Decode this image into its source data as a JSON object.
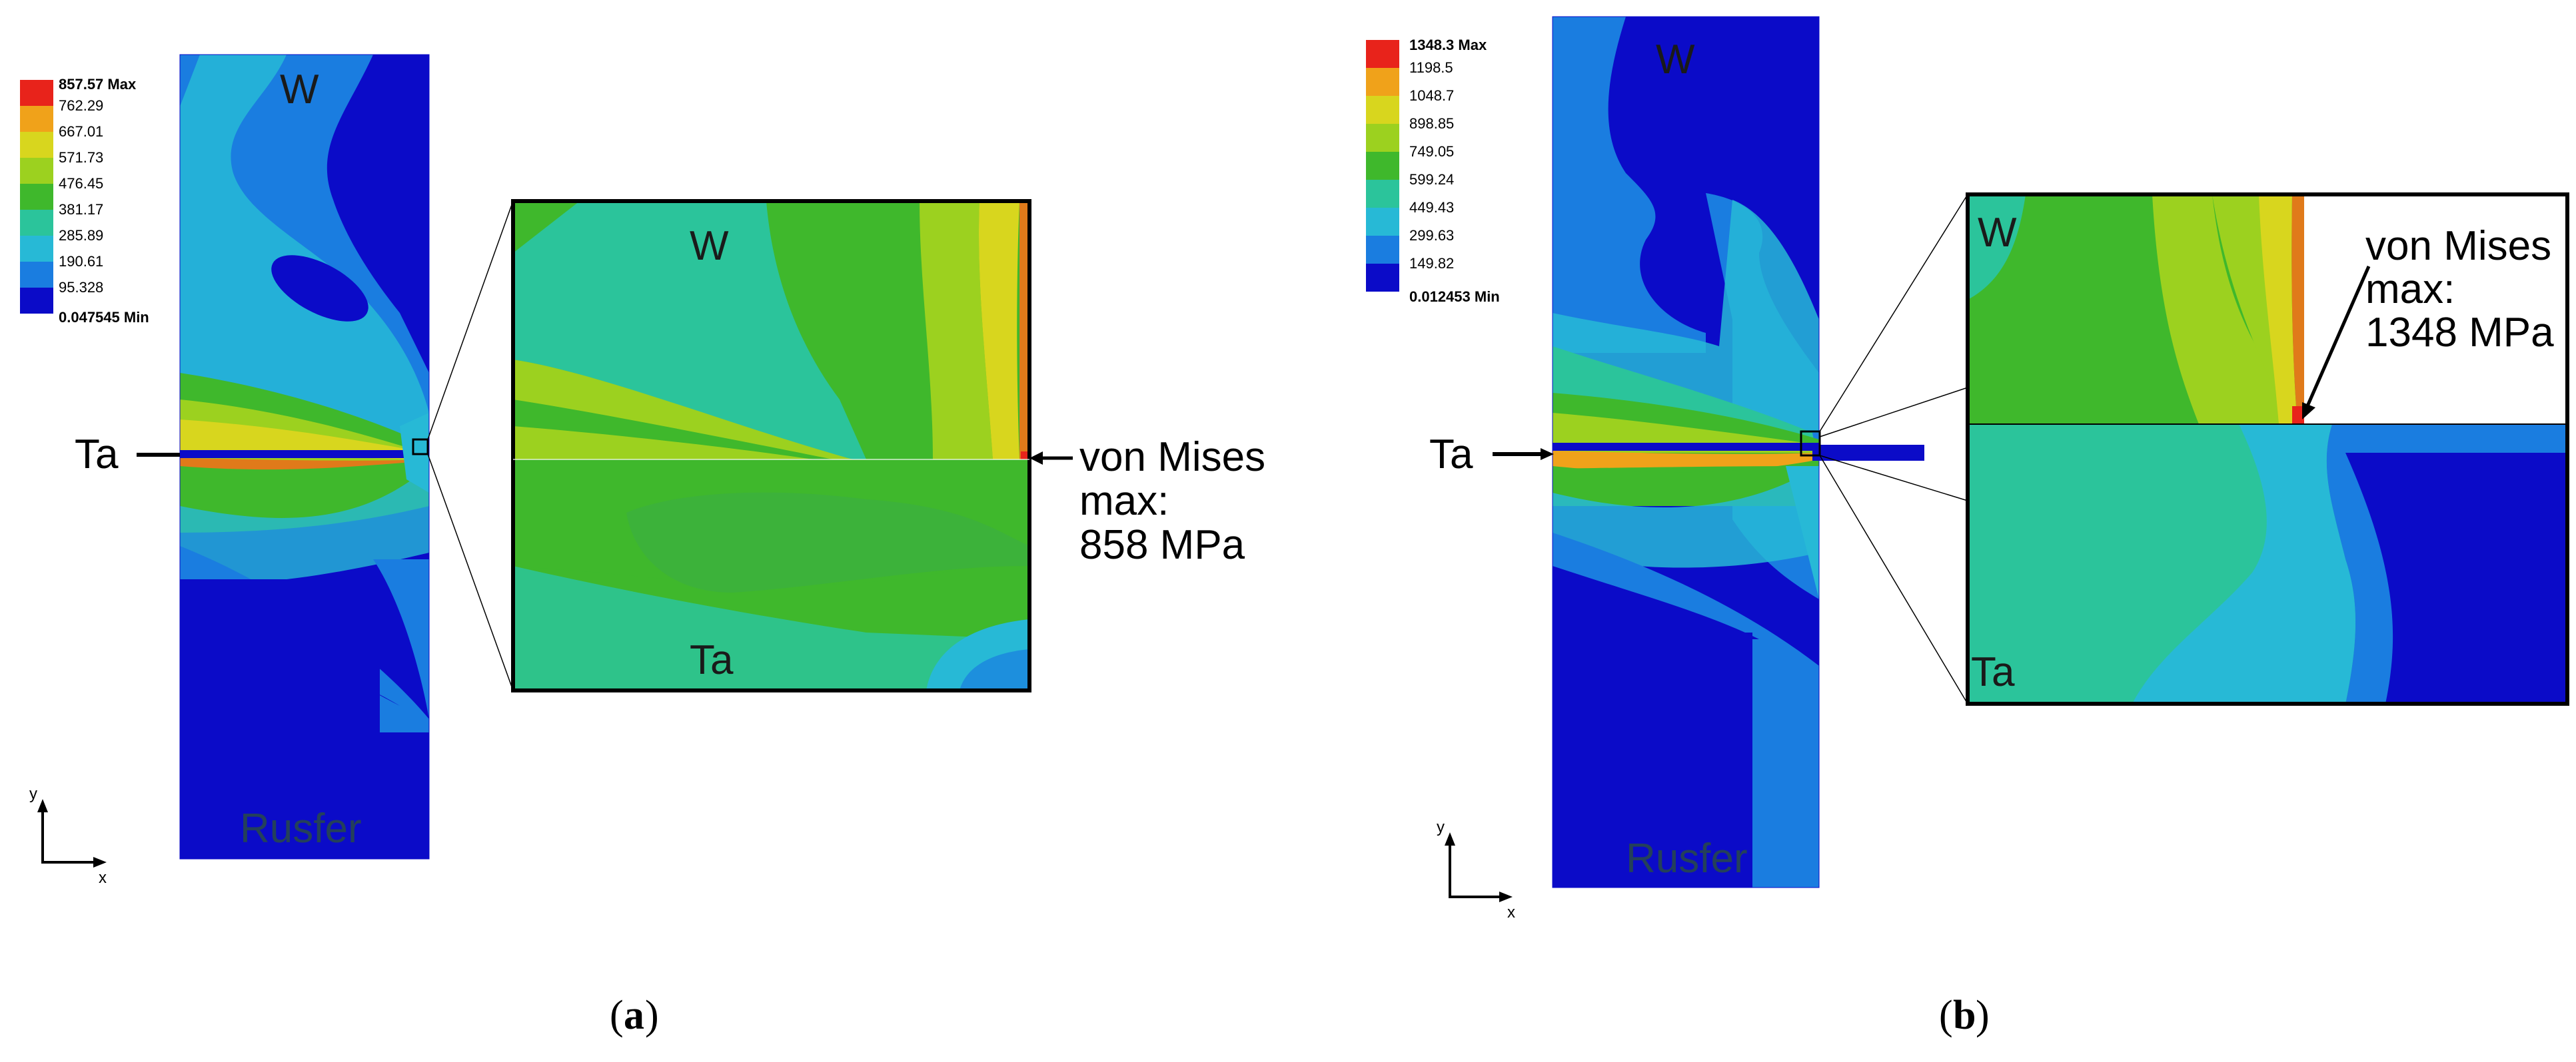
{
  "panel_a": {
    "legend": {
      "max_label": "857.57 Max",
      "min_label": "0.047545 Min",
      "levels": [
        "762.29",
        "667.01",
        "571.73",
        "476.45",
        "381.17",
        "285.89",
        "190.61",
        "95.328"
      ],
      "colors": [
        "#e8231b",
        "#f0a21a",
        "#d8d61e",
        "#9cd11f",
        "#3fb82c",
        "#2bc49b",
        "#27b9d6",
        "#1a7de0",
        "#0b0bc8"
      ]
    },
    "labels": {
      "top_material": "W",
      "bottom_material": "Rusfer",
      "interlayer": "Ta",
      "zoom_top": "W",
      "zoom_bottom": "Ta"
    },
    "annotation": [
      "von Mises",
      "max:",
      "858 MPa"
    ],
    "axes": {
      "y": "y",
      "x": "x"
    },
    "caption": {
      "open": "(",
      "letter": "a",
      "close": ")"
    }
  },
  "panel_b": {
    "legend": {
      "max_label": "1348.3 Max",
      "min_label": "0.012453 Min",
      "levels": [
        "1198.5",
        "1048.7",
        "898.85",
        "749.05",
        "599.24",
        "449.43",
        "299.63",
        "149.82"
      ],
      "colors": [
        "#e8231b",
        "#f0a21a",
        "#d8d61e",
        "#9cd11f",
        "#3fb82c",
        "#2bc49b",
        "#27b9d6",
        "#1a7de0",
        "#0b0bc8"
      ]
    },
    "labels": {
      "top_material": "W",
      "bottom_material": "Rusfer",
      "interlayer": "Ta",
      "zoom_top": "W",
      "zoom_bottom": "Ta"
    },
    "annotation": [
      "von Mises",
      "max:",
      "1348 MPa"
    ],
    "axes": {
      "y": "y",
      "x": "x"
    },
    "caption": {
      "open": "(",
      "letter": "b",
      "close": ")"
    }
  }
}
